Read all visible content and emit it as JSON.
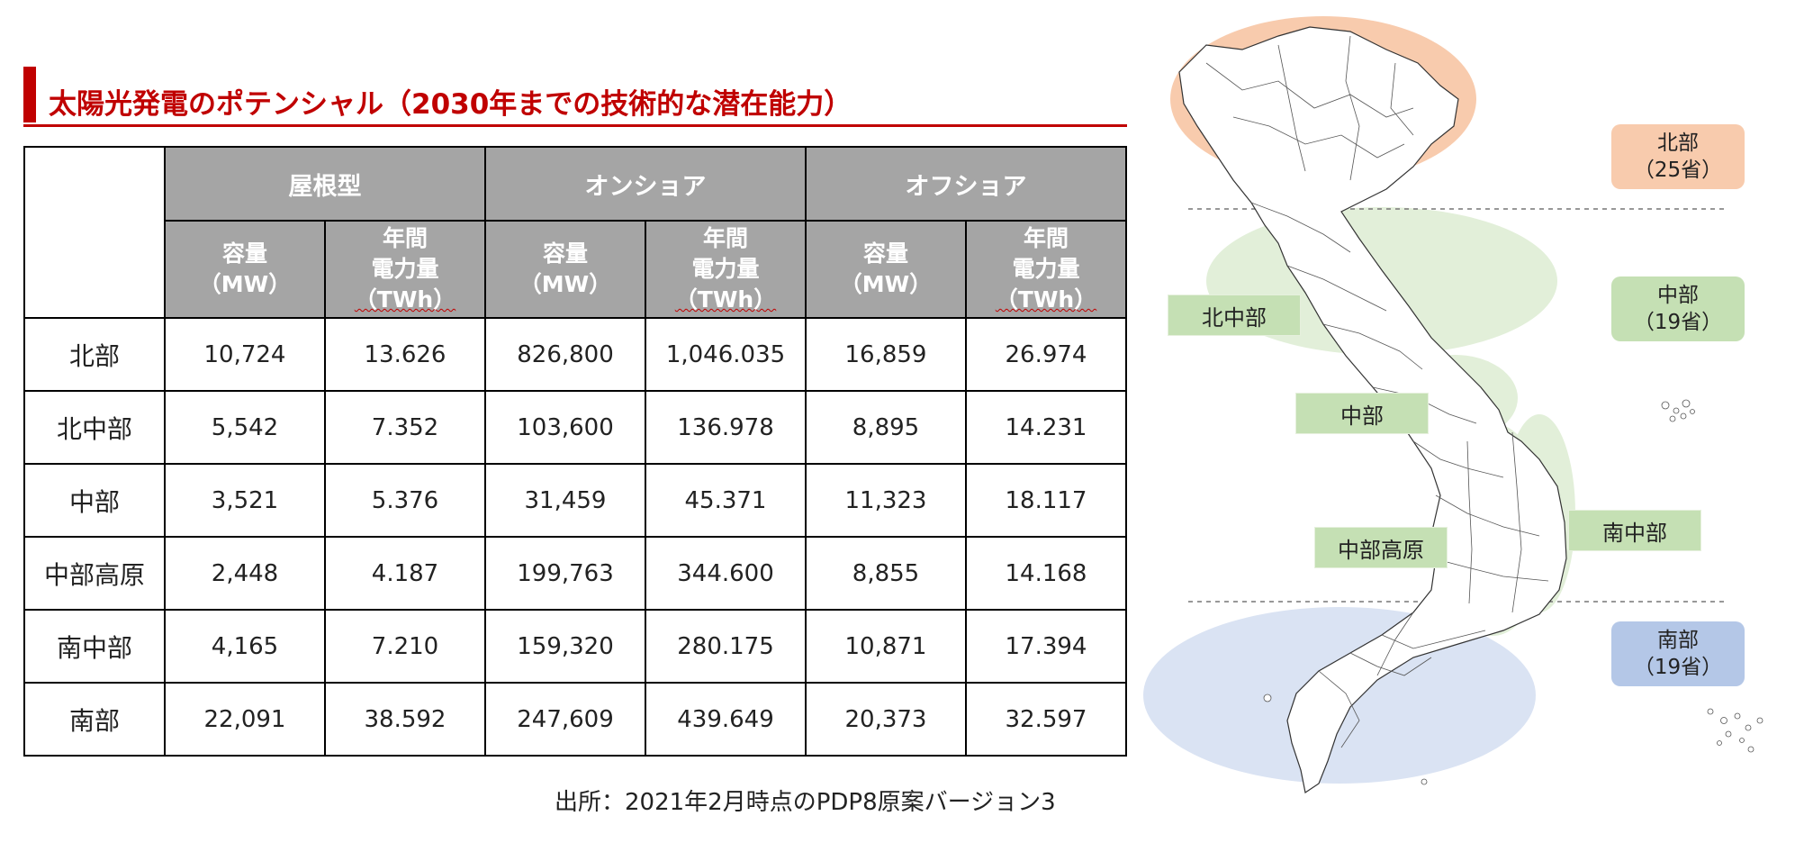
{
  "title": "太陽光発電のポテンシャル（2030年までの技術的な潜在能力）",
  "table": {
    "groups": [
      "屋根型",
      "オンショア",
      "オフショア"
    ],
    "sub_capacity": [
      "容量",
      "（MW）"
    ],
    "sub_energy": [
      "年間",
      "電力量",
      "（TWh）"
    ],
    "rows": [
      {
        "region": "北部",
        "values": [
          "10,724",
          "13.626",
          "826,800",
          "1,046.035",
          "16,859",
          "26.974"
        ]
      },
      {
        "region": "北中部",
        "values": [
          "5,542",
          "7.352",
          "103,600",
          "136.978",
          "8,895",
          "14.231"
        ]
      },
      {
        "region": "中部",
        "values": [
          "3,521",
          "5.376",
          "31,459",
          "45.371",
          "11,323",
          "18.117"
        ]
      },
      {
        "region": "中部高原",
        "values": [
          "2,448",
          "4.187",
          "199,763",
          "344.600",
          "8,855",
          "14.168"
        ]
      },
      {
        "region": "南中部",
        "values": [
          "4,165",
          "7.210",
          "159,320",
          "280.175",
          "10,871",
          "17.394"
        ]
      },
      {
        "region": "南部",
        "values": [
          "22,091",
          "38.592",
          "247,609",
          "439.649",
          "20,373",
          "32.597"
        ]
      }
    ]
  },
  "source": "出所：2021年2月時点のPDP8原案バージョン3",
  "map": {
    "labels": {
      "north_central": "北中部",
      "central": "中部",
      "central_highlands": "中部高原",
      "south_central": "南中部"
    },
    "badges": {
      "north": {
        "name": "北部",
        "count": "（25省）"
      },
      "central": {
        "name": "中部",
        "count": "（19省）"
      },
      "south": {
        "name": "南部",
        "count": "（19省）"
      }
    }
  },
  "colors": {
    "accent": "#c00000",
    "header_gray": "#a5a5a5",
    "north": "#f8cbad",
    "central": "#c5e0b4",
    "south": "#b4c7e7"
  }
}
